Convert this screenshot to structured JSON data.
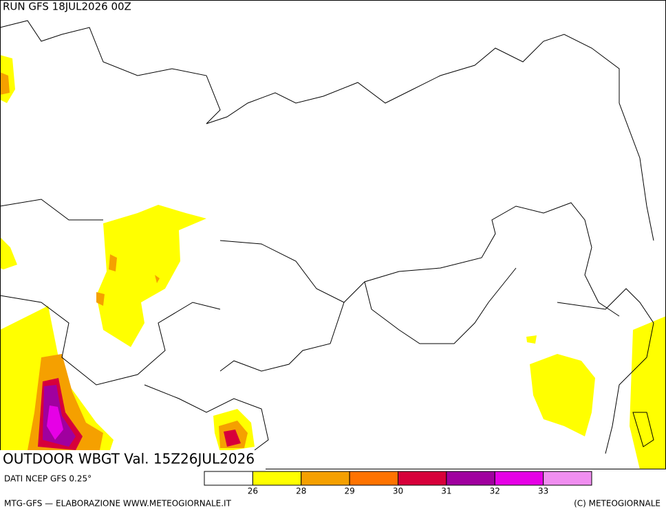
{
  "header": {
    "run": "RUN GFS 18JUL2026 00Z"
  },
  "title": "OUTDOOR WBGT Val. 15Z26JUL2026",
  "source": "DATI NCEP GFS 0.25°",
  "legend": {
    "colors": [
      "#ffffff",
      "#ffff00",
      "#f5a000",
      "#ff7300",
      "#d7003a",
      "#a0009f",
      "#e600e6",
      "#f08ef0"
    ],
    "ticks": [
      "26",
      "28",
      "29",
      "30",
      "31",
      "32",
      "33"
    ]
  },
  "footer": {
    "left": "MTG-GFS — ELABORAZIONE WWW.METEOGIORNALE.IT",
    "right": "(C) METEOGIORNALE"
  }
}
